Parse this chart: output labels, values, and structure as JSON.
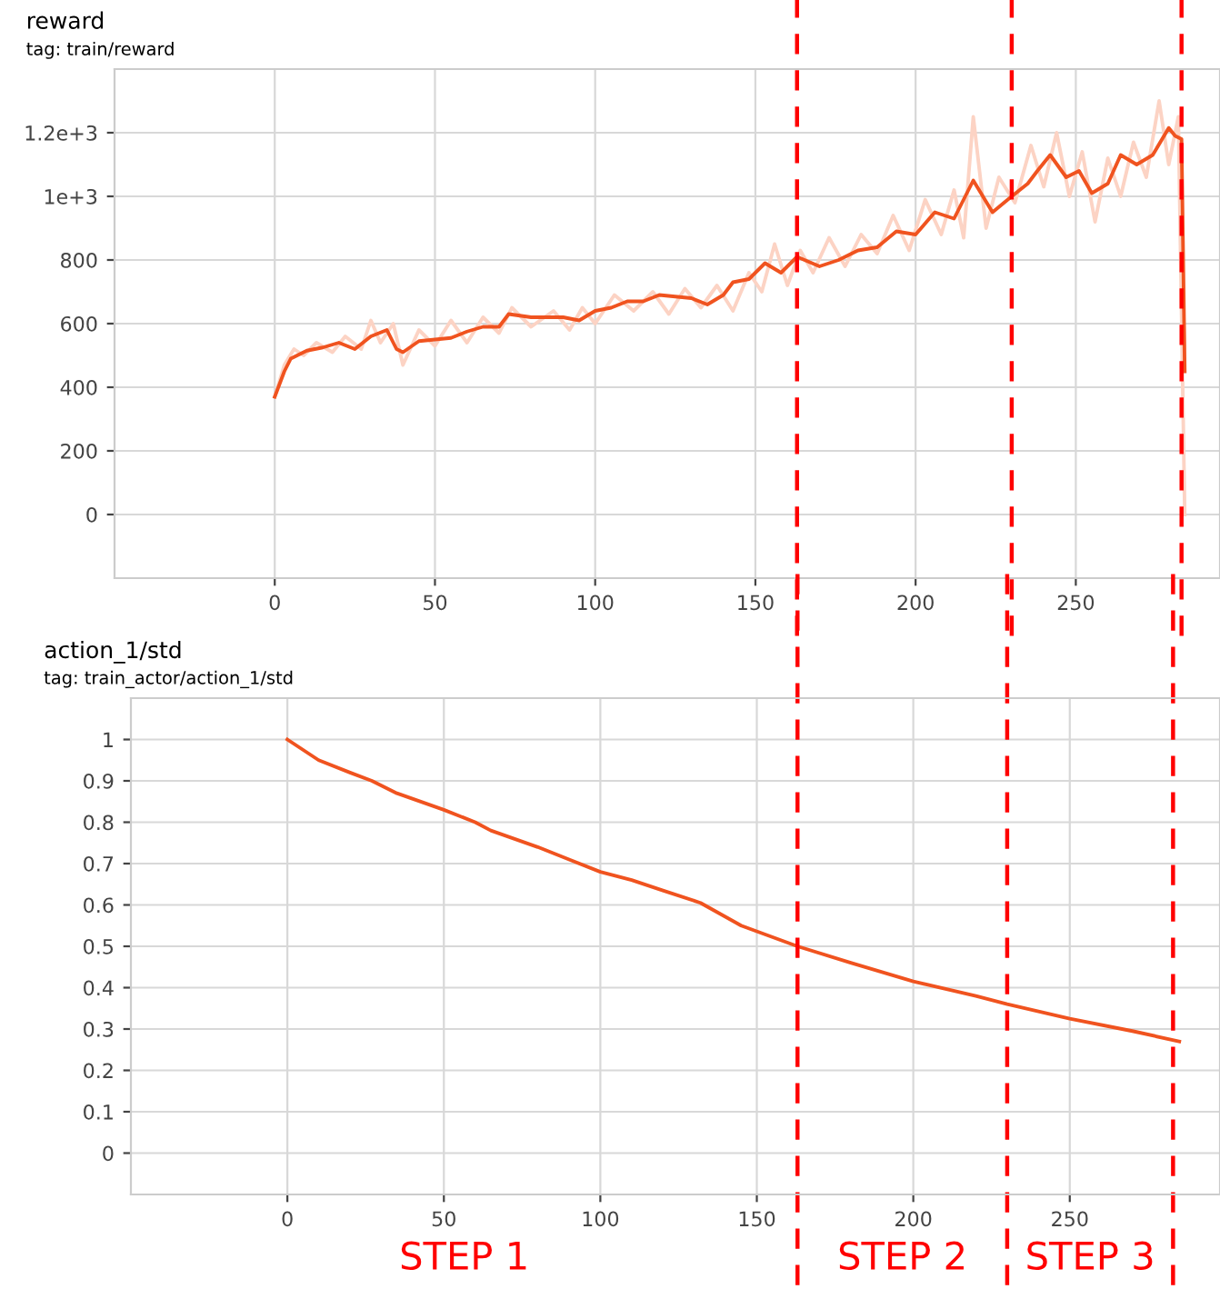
{
  "chart_data": [
    {
      "type": "line",
      "title": "reward",
      "subtitle": "tag: train/reward",
      "xlim": [
        -50,
        295
      ],
      "ylim": [
        -200,
        1400
      ],
      "xticks": [
        0,
        50,
        100,
        150,
        200,
        250
      ],
      "yticks": [
        0,
        200,
        400,
        600,
        800,
        {
          "value": 1000,
          "label": "1e+3"
        },
        {
          "value": 1200,
          "label": "1.2e+3"
        }
      ],
      "grid": true,
      "series": [
        {
          "color": "#fcd3c4",
          "x": [
            0,
            3,
            6,
            9,
            13,
            18,
            22,
            27,
            30,
            33,
            37,
            40,
            45,
            50,
            55,
            60,
            65,
            70,
            74,
            80,
            87,
            92,
            96,
            100,
            106,
            112,
            118,
            123,
            128,
            133,
            138,
            143,
            148,
            152,
            156,
            160,
            164,
            168,
            173,
            178,
            183,
            188,
            193,
            198,
            203,
            208,
            212,
            215,
            218,
            222,
            226,
            231,
            236,
            240,
            244,
            248,
            252,
            256,
            260,
            264,
            268,
            272,
            276,
            279,
            282,
            284
          ],
          "values": [
            370,
            470,
            520,
            500,
            540,
            510,
            560,
            520,
            610,
            540,
            600,
            470,
            580,
            530,
            610,
            540,
            620,
            570,
            650,
            590,
            640,
            580,
            650,
            600,
            690,
            640,
            700,
            630,
            710,
            650,
            720,
            640,
            760,
            700,
            850,
            720,
            830,
            760,
            870,
            780,
            880,
            820,
            940,
            830,
            990,
            880,
            1020,
            870,
            1250,
            900,
            1060,
            980,
            1160,
            1030,
            1200,
            1000,
            1140,
            920,
            1120,
            1000,
            1170,
            1060,
            1300,
            1100,
            1250,
            0
          ]
        },
        {
          "color": "#f0531f",
          "x": [
            0,
            3,
            5,
            10,
            15,
            20,
            25,
            30,
            35,
            38,
            40,
            45,
            50,
            55,
            60,
            65,
            70,
            73,
            80,
            90,
            95,
            100,
            105,
            110,
            115,
            120,
            125,
            130,
            135,
            140,
            143,
            148,
            153,
            158,
            163,
            170,
            176,
            182,
            188,
            194,
            200,
            206,
            212,
            218,
            224,
            230,
            235,
            238,
            242,
            247,
            251,
            255,
            260,
            264,
            269,
            274,
            279,
            281,
            283,
            284
          ],
          "values": [
            370,
            450,
            490,
            515,
            525,
            540,
            520,
            560,
            580,
            520,
            510,
            545,
            550,
            555,
            575,
            590,
            590,
            630,
            620,
            620,
            610,
            640,
            650,
            670,
            670,
            690,
            685,
            680,
            660,
            690,
            730,
            740,
            790,
            760,
            810,
            780,
            800,
            830,
            840,
            890,
            880,
            950,
            930,
            1050,
            950,
            1000,
            1040,
            1080,
            1130,
            1060,
            1080,
            1010,
            1040,
            1130,
            1100,
            1130,
            1215,
            1190,
            1180,
            450
          ]
        }
      ],
      "ref_lines": [
        {
          "axis": "x",
          "value": 163,
          "color": "#ff0000",
          "line_style": "dashed"
        },
        {
          "axis": "x",
          "value": 230,
          "color": "#ff0000",
          "line_style": "dashed"
        },
        {
          "axis": "x",
          "value": 283,
          "color": "#ff0000",
          "line_style": "dashed"
        }
      ]
    },
    {
      "type": "line",
      "title": "action_1/std",
      "subtitle": "tag: train_actor/action_1/std",
      "xlim": [
        -50,
        298
      ],
      "ylim": [
        -0.1,
        1.1
      ],
      "xticks": [
        0,
        50,
        100,
        150,
        200,
        250
      ],
      "yticks": [
        0,
        0.1,
        0.2,
        0.3,
        0.4,
        0.5,
        0.6,
        0.7,
        0.8,
        0.9,
        1
      ],
      "grid": true,
      "series": [
        {
          "color": "#f0531f",
          "x": [
            0,
            10,
            20,
            27,
            35,
            50,
            60,
            65,
            80,
            90,
            100,
            110,
            120,
            132,
            145,
            163,
            180,
            200,
            220,
            230,
            250,
            270,
            285
          ],
          "values": [
            1.0,
            0.95,
            0.92,
            0.9,
            0.87,
            0.83,
            0.8,
            0.78,
            0.74,
            0.71,
            0.68,
            0.66,
            0.635,
            0.605,
            0.55,
            0.5,
            0.46,
            0.415,
            0.38,
            0.36,
            0.325,
            0.295,
            0.27
          ]
        }
      ],
      "ref_lines": [
        {
          "axis": "x",
          "value": 163,
          "color": "#ff0000",
          "line_style": "dashed"
        },
        {
          "axis": "x",
          "value": 230,
          "color": "#ff0000",
          "line_style": "dashed"
        },
        {
          "axis": "x",
          "value": 283,
          "color": "#ff0000",
          "line_style": "dashed"
        }
      ],
      "annotations": [
        "STEP 1",
        "STEP 2",
        "STEP 3"
      ]
    }
  ]
}
